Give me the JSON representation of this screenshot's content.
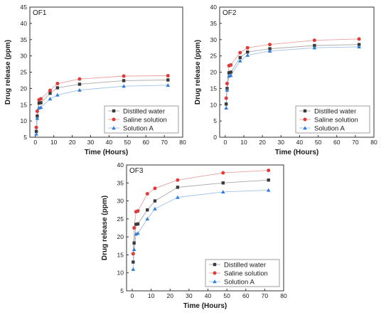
{
  "chart_data": [
    {
      "type": "line",
      "panel_label": "OF1",
      "xlabel": "Time (Hours)",
      "ylabel": "Drug release (ppm)",
      "xlim": [
        -3,
        80
      ],
      "ylim": [
        5,
        45
      ],
      "xticks": [
        0,
        10,
        20,
        30,
        40,
        50,
        60,
        70,
        80
      ],
      "yticks": [
        5,
        10,
        15,
        20,
        25,
        30,
        35,
        40,
        45
      ],
      "legend_position": "bottom-right",
      "x": [
        0.5,
        1,
        2,
        3,
        8,
        12,
        24,
        48,
        72
      ],
      "series": [
        {
          "name": "Distilled water",
          "marker": "square",
          "color": "#3a3a3a",
          "line_color": "#aaaaaa",
          "values": [
            6.8,
            11.5,
            15.5,
            15.6,
            18.5,
            20.2,
            21.3,
            22.4,
            22.6
          ]
        },
        {
          "name": "Saline solution",
          "marker": "circle",
          "color": "#e03a3a",
          "line_color": "#e8a0a0",
          "values": [
            8.0,
            13.0,
            16.5,
            16.8,
            19.4,
            21.5,
            22.9,
            23.8,
            23.9
          ]
        },
        {
          "name": "Solution A",
          "marker": "triangle",
          "color": "#2f7fd6",
          "line_color": "#9fc0e8",
          "values": [
            6.0,
            10.8,
            14.0,
            14.2,
            16.8,
            18.0,
            19.5,
            20.7,
            21.0
          ]
        }
      ]
    },
    {
      "type": "line",
      "panel_label": "OF2",
      "xlabel": "Time (Hours)",
      "ylabel": "Drug release (ppm)",
      "xlim": [
        -3,
        80
      ],
      "ylim": [
        0,
        40
      ],
      "xticks": [
        0,
        10,
        20,
        30,
        40,
        50,
        60,
        70,
        80
      ],
      "yticks": [
        0,
        5,
        10,
        15,
        20,
        25,
        30,
        35,
        40
      ],
      "legend_position": "bottom-right",
      "x": [
        0.5,
        1,
        2,
        3,
        8,
        12,
        24,
        48,
        72
      ],
      "series": [
        {
          "name": "Distilled water",
          "marker": "square",
          "color": "#3a3a3a",
          "line_color": "#aaaaaa",
          "values": [
            10.2,
            15.0,
            19.8,
            20.0,
            24.5,
            26.2,
            27.2,
            28.2,
            28.5
          ]
        },
        {
          "name": "Saline solution",
          "marker": "circle",
          "color": "#e03a3a",
          "line_color": "#e8a0a0",
          "values": [
            12.0,
            16.5,
            22.0,
            22.2,
            26.0,
            27.5,
            28.5,
            29.8,
            30.2
          ]
        },
        {
          "name": "Solution A",
          "marker": "triangle",
          "color": "#2f7fd6",
          "line_color": "#9fc0e8",
          "values": [
            9.0,
            14.5,
            18.8,
            19.0,
            23.5,
            25.2,
            26.5,
            27.5,
            27.8
          ]
        }
      ]
    },
    {
      "type": "line",
      "panel_label": "OF3",
      "xlabel": "Time (Hours)",
      "ylabel": "Drug release (ppm)",
      "xlim": [
        -3,
        80
      ],
      "ylim": [
        5,
        40
      ],
      "xticks": [
        0,
        10,
        20,
        30,
        40,
        50,
        60,
        70,
        80
      ],
      "yticks": [
        5,
        10,
        15,
        20,
        25,
        30,
        35,
        40
      ],
      "legend_position": "bottom-right",
      "x": [
        0.5,
        1,
        2,
        3,
        8,
        12,
        24,
        48,
        72
      ],
      "series": [
        {
          "name": "Distilled water",
          "marker": "square",
          "color": "#3a3a3a",
          "line_color": "#aaaaaa",
          "values": [
            13.0,
            18.3,
            23.5,
            23.6,
            27.5,
            30.0,
            33.8,
            35.0,
            35.8
          ]
        },
        {
          "name": "Saline solution",
          "marker": "circle",
          "color": "#e03a3a",
          "line_color": "#e8a0a0",
          "values": [
            15.3,
            22.5,
            27.0,
            27.2,
            32.0,
            33.5,
            35.8,
            37.8,
            38.5
          ]
        },
        {
          "name": "Solution A",
          "marker": "triangle",
          "color": "#2f7fd6",
          "line_color": "#9fc0e8",
          "values": [
            11.0,
            16.5,
            20.8,
            21.0,
            25.0,
            27.8,
            31.0,
            32.5,
            33.0
          ]
        }
      ]
    }
  ]
}
